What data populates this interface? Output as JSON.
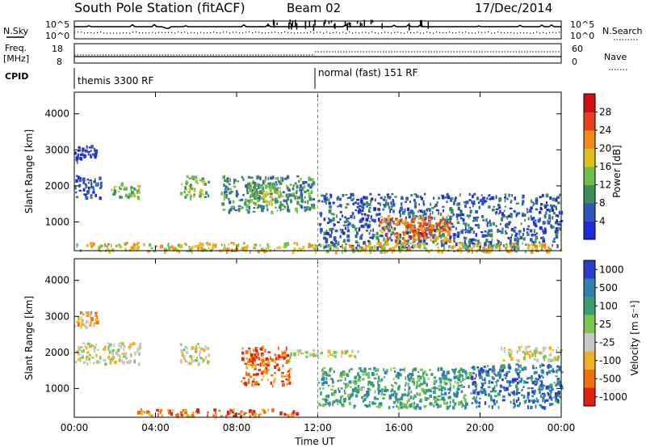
{
  "header": {
    "title": "South Pole Station (fitACF)",
    "beam": "Beam 02",
    "date": "17/Dec/2014"
  },
  "top_panels": {
    "nsky_label": "N.Sky",
    "nsky_ticks": [
      "10^5",
      "10^0"
    ],
    "nsearch_label": "N.Search",
    "nsearch_ticks": [
      "10^5",
      "10^0"
    ],
    "freq_label_line1": "Freq.",
    "freq_label_line2": "[MHz]",
    "freq_ticks": [
      "18",
      "8"
    ],
    "nave_label": "Nave",
    "nave_ticks": [
      "60",
      "0"
    ],
    "cpid_label": "CPID",
    "cpid_left": "themis 3300 RF",
    "cpid_right": "normal (fast) 151 RF"
  },
  "chart_data": [
    {
      "type": "heatmap",
      "title": "",
      "xlabel": "",
      "ylabel": "Slant Range [km]",
      "x_ticks": [
        "00:00",
        "04:00",
        "08:00",
        "12:00",
        "16:00",
        "20:00",
        "00:00"
      ],
      "y_ticks": [
        "1000",
        "2000",
        "3000",
        "4000"
      ],
      "ylim": [
        200,
        4600
      ],
      "colorbar": {
        "label": "Power [dB]",
        "ticks": [
          "4",
          "8",
          "12",
          "16",
          "20",
          "24",
          "28"
        ],
        "colors": [
          "#1f2bd6",
          "#2f56b8",
          "#3c8f5c",
          "#6fbf4e",
          "#e0c020",
          "#f08a1c",
          "#e8401a",
          "#d01010"
        ]
      },
      "echo_regions": [
        {
          "t_start": 0.0,
          "t_end": 1.1,
          "range_start": 2700,
          "range_end": 3150,
          "level": 0
        },
        {
          "t_start": 0.0,
          "t_end": 1.3,
          "range_start": 1700,
          "range_end": 2300,
          "level": 1
        },
        {
          "t_start": 1.8,
          "t_end": 3.2,
          "range_start": 1700,
          "range_end": 2100,
          "level": 3
        },
        {
          "t_start": 5.2,
          "t_end": 6.6,
          "range_start": 1700,
          "range_end": 2300,
          "level": 3
        },
        {
          "t_start": 7.2,
          "t_end": 11.8,
          "range_start": 1300,
          "range_end": 2300,
          "level": 2
        },
        {
          "t_start": 8.5,
          "t_end": 10.2,
          "range_start": 1500,
          "range_end": 2100,
          "level": 3
        },
        {
          "t_start": 12.0,
          "t_end": 24.0,
          "range_start": 300,
          "range_end": 1800,
          "level": 1
        },
        {
          "t_start": 15.0,
          "t_end": 18.5,
          "range_start": 500,
          "range_end": 1200,
          "level": 5
        },
        {
          "t_start": 16.2,
          "t_end": 17.6,
          "range_start": 600,
          "range_end": 1000,
          "level": 6
        },
        {
          "t_start": 0.0,
          "t_end": 24.0,
          "range_start": 200,
          "range_end": 450,
          "level": 4
        }
      ]
    },
    {
      "type": "heatmap",
      "title": "",
      "xlabel": "Time UT",
      "ylabel": "Slant Range [km]",
      "x_ticks": [
        "00:00",
        "04:00",
        "08:00",
        "12:00",
        "16:00",
        "20:00",
        "00:00"
      ],
      "y_ticks": [
        "1000",
        "2000",
        "3000",
        "4000"
      ],
      "ylim": [
        200,
        4600
      ],
      "colorbar": {
        "label": "Velocity [m s⁻¹]",
        "ticks": [
          "1000",
          "500",
          "100",
          "25",
          "-25",
          "-100",
          "-500",
          "-1000"
        ],
        "colors": [
          "#2a3fc8",
          "#2f7fb0",
          "#3aa070",
          "#78c850",
          "#c8c8c8",
          "#f0b020",
          "#f07010",
          "#e02010"
        ]
      },
      "echo_regions": [
        {
          "t_start": 0.0,
          "t_end": 1.1,
          "range_start": 2700,
          "range_end": 3150,
          "level": 5
        },
        {
          "t_start": 0.0,
          "t_end": 3.2,
          "range_start": 1700,
          "range_end": 2300,
          "level": 4
        },
        {
          "t_start": 5.2,
          "t_end": 6.6,
          "range_start": 1700,
          "range_end": 2300,
          "level": 4
        },
        {
          "t_start": 8.2,
          "t_end": 10.6,
          "range_start": 1100,
          "range_end": 2200,
          "level": 6
        },
        {
          "t_start": 10.5,
          "t_end": 14.0,
          "range_start": 1900,
          "range_end": 2100,
          "level": 4
        },
        {
          "t_start": 12.0,
          "t_end": 19.5,
          "range_start": 500,
          "range_end": 1600,
          "level": 2
        },
        {
          "t_start": 19.5,
          "t_end": 24.0,
          "range_start": 500,
          "range_end": 1700,
          "level": 1
        },
        {
          "t_start": 3.0,
          "t_end": 11.0,
          "range_start": 250,
          "range_end": 450,
          "level": 6
        },
        {
          "t_start": 21.0,
          "t_end": 24.0,
          "range_start": 1800,
          "range_end": 2200,
          "level": 4
        }
      ]
    }
  ]
}
